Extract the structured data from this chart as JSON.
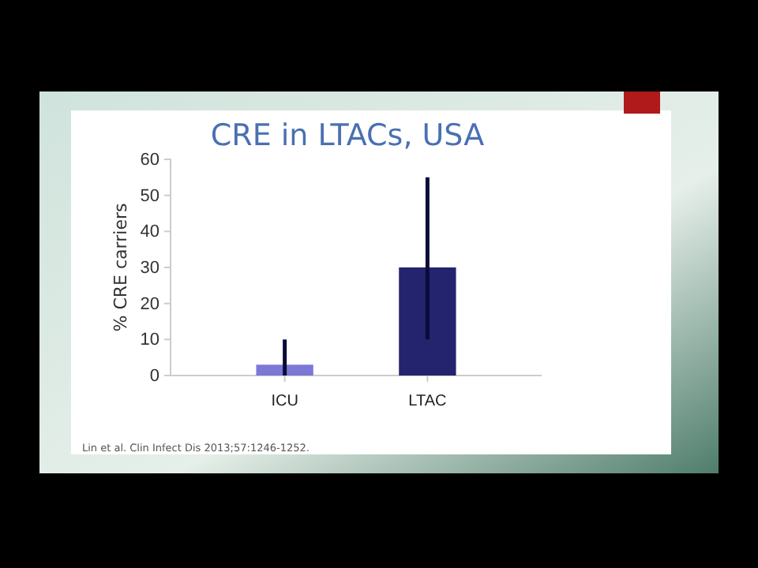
{
  "chart_data": {
    "type": "bar",
    "title": "CRE in LTACs, USA",
    "ylabel": "% CRE carriers",
    "categories": [
      "ICU",
      "LTAC"
    ],
    "values": [
      3,
      30
    ],
    "colors": [
      "#7b78d6",
      "#24246e"
    ],
    "errors": [
      [
        0,
        10
      ],
      [
        10,
        55
      ]
    ],
    "ylim": [
      0,
      60
    ],
    "yticks": [
      0,
      10,
      20,
      30,
      40,
      50,
      60
    ],
    "annotations": [
      "Lin et al. Clin Infect Dis 2013;57:1246-1252."
    ]
  }
}
